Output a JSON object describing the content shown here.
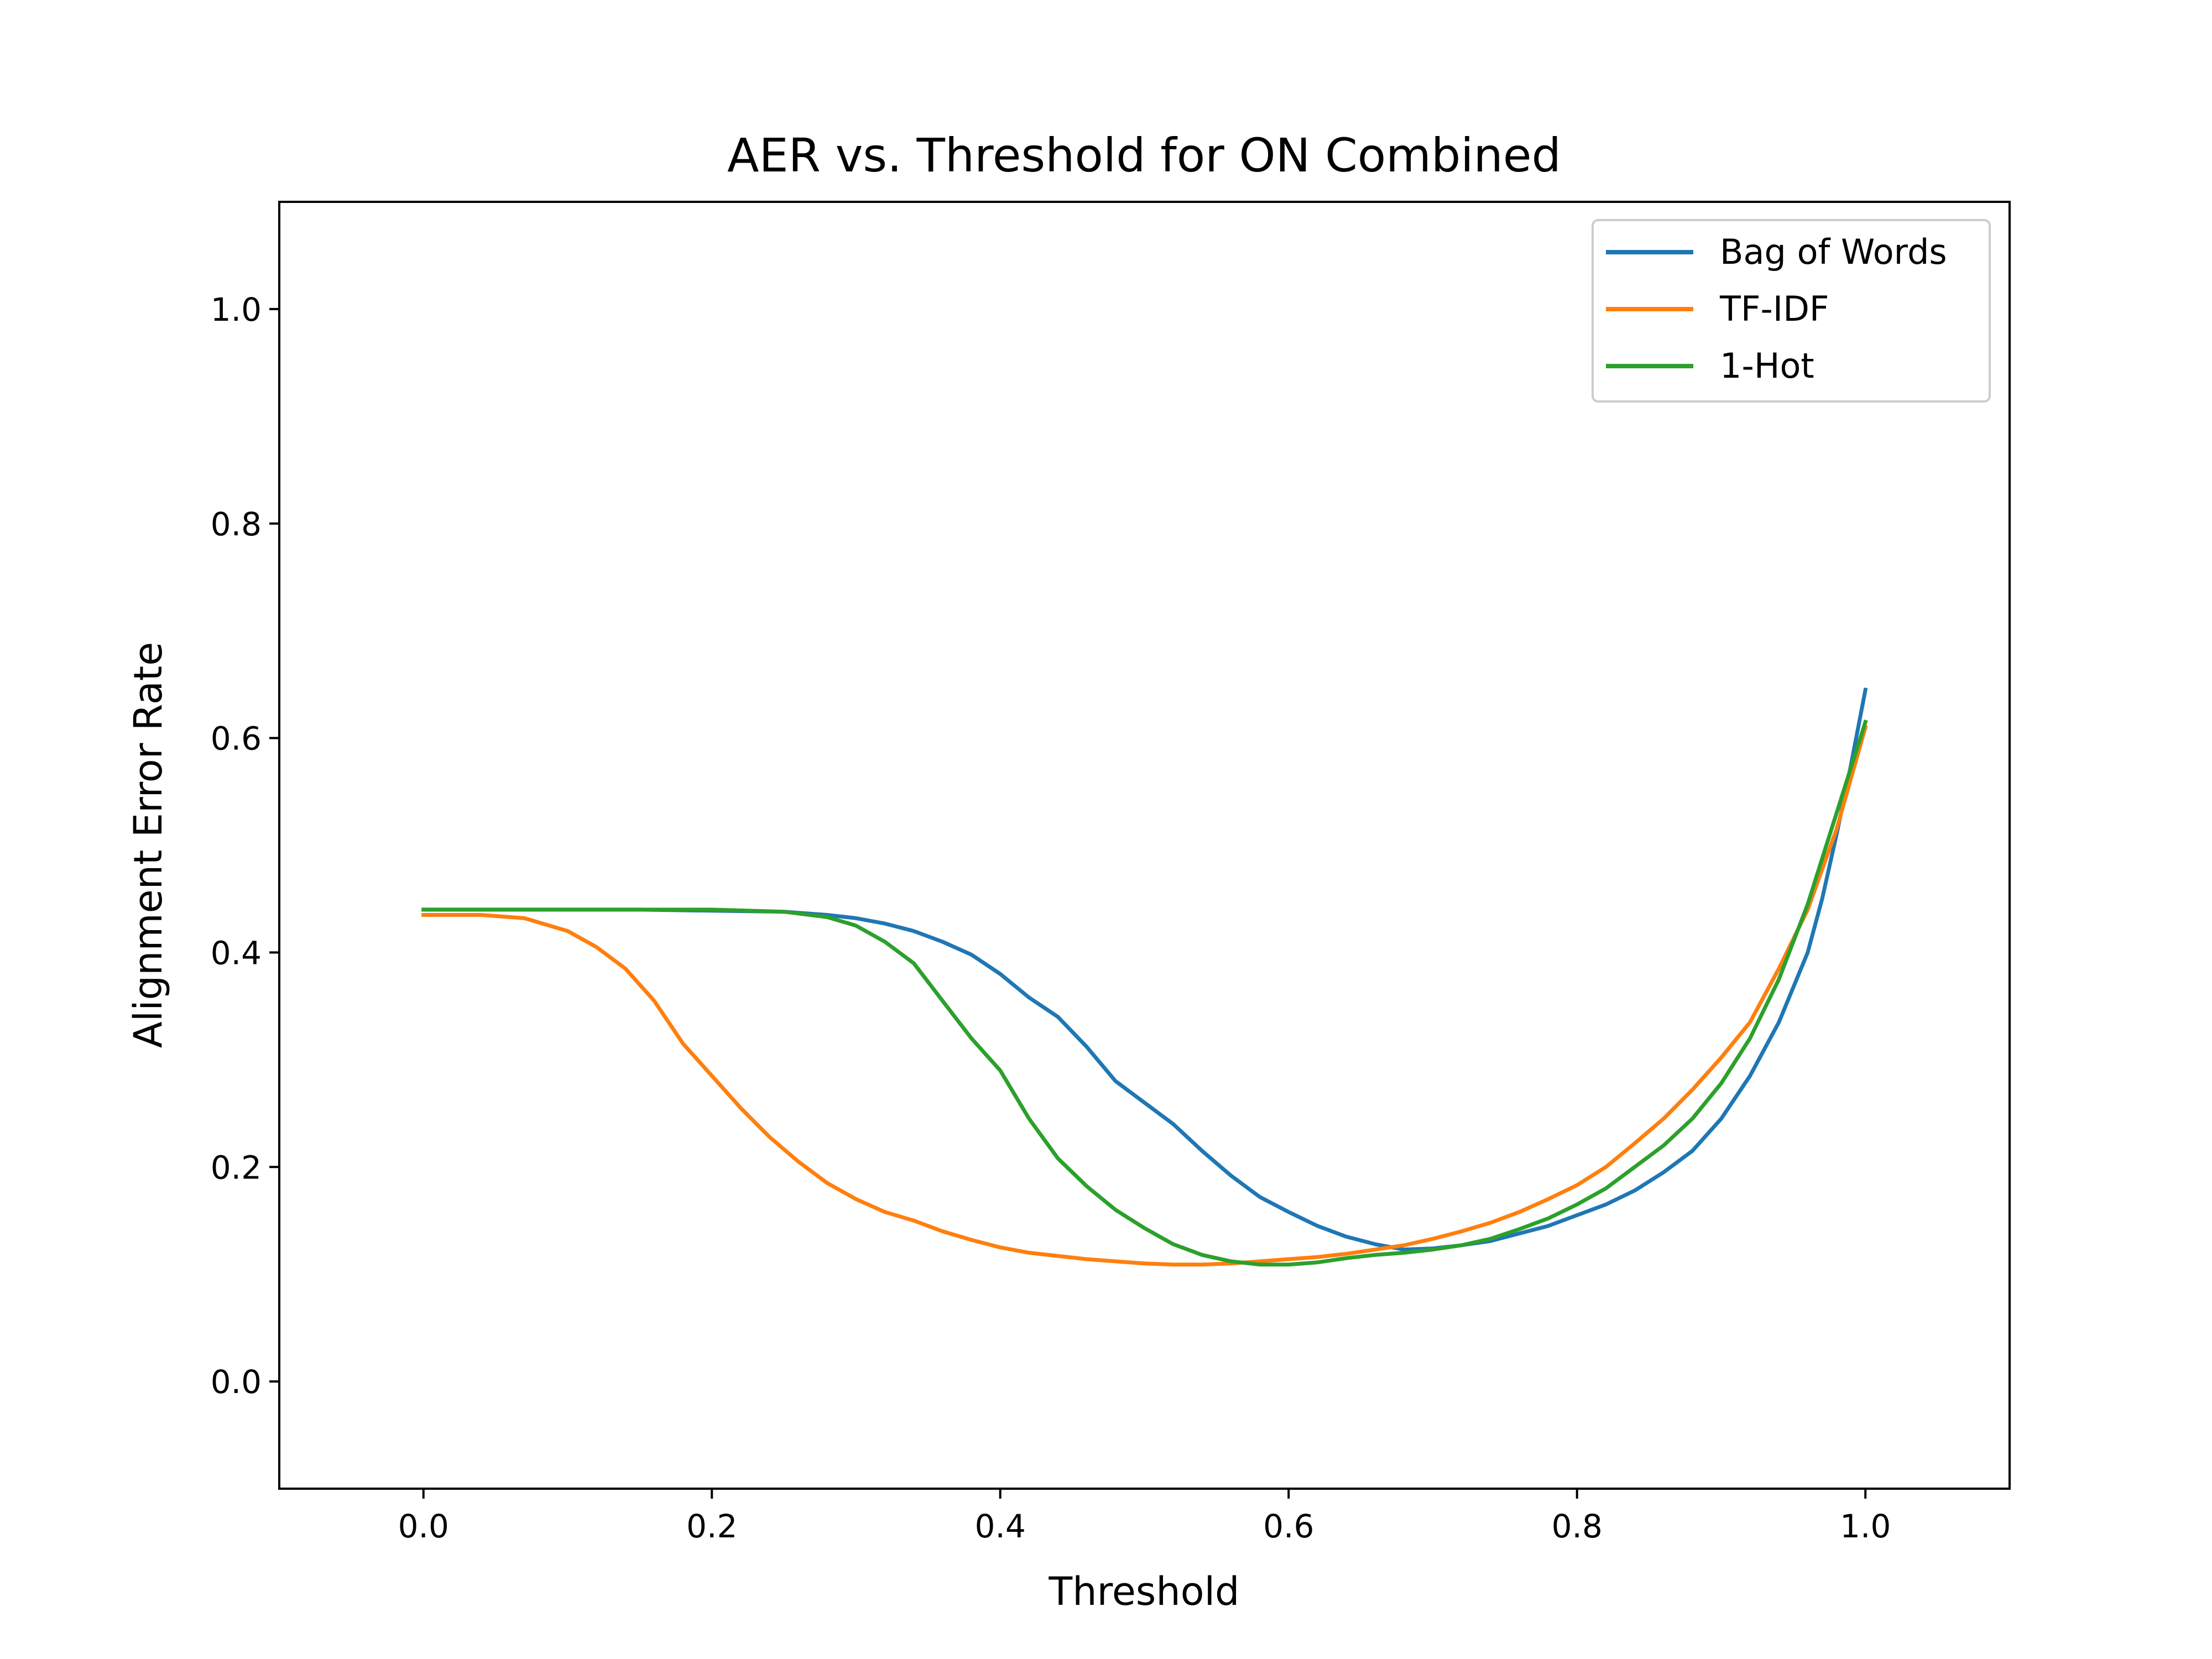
{
  "chart_data": {
    "type": "line",
    "title": "AER vs. Threshold for ON Combined",
    "xlabel": "Threshold",
    "ylabel": "Alignment Error Rate",
    "xlim": [
      -0.1,
      1.1
    ],
    "ylim": [
      -0.1,
      1.1
    ],
    "xticks": [
      0.0,
      0.2,
      0.4,
      0.6,
      0.8,
      1.0
    ],
    "xtick_labels": [
      "0.0",
      "0.2",
      "0.4",
      "0.6",
      "0.8",
      "1.0"
    ],
    "yticks": [
      0.0,
      0.2,
      0.4,
      0.6,
      0.8,
      1.0
    ],
    "ytick_labels": [
      "0.0",
      "0.2",
      "0.4",
      "0.6",
      "0.8",
      "1.0"
    ],
    "grid": false,
    "legend_position": "top-right",
    "series": [
      {
        "name": "Bag of Words",
        "color": "#1f77b4",
        "points": [
          [
            0.0,
            0.44
          ],
          [
            0.05,
            0.44
          ],
          [
            0.1,
            0.44
          ],
          [
            0.15,
            0.44
          ],
          [
            0.2,
            0.439
          ],
          [
            0.25,
            0.438
          ],
          [
            0.28,
            0.435
          ],
          [
            0.3,
            0.432
          ],
          [
            0.32,
            0.427
          ],
          [
            0.34,
            0.42
          ],
          [
            0.36,
            0.41
          ],
          [
            0.38,
            0.398
          ],
          [
            0.4,
            0.38
          ],
          [
            0.42,
            0.358
          ],
          [
            0.44,
            0.34
          ],
          [
            0.46,
            0.312
          ],
          [
            0.48,
            0.28
          ],
          [
            0.5,
            0.26
          ],
          [
            0.52,
            0.24
          ],
          [
            0.54,
            0.215
          ],
          [
            0.56,
            0.192
          ],
          [
            0.58,
            0.172
          ],
          [
            0.6,
            0.158
          ],
          [
            0.62,
            0.145
          ],
          [
            0.64,
            0.135
          ],
          [
            0.66,
            0.128
          ],
          [
            0.68,
            0.123
          ],
          [
            0.7,
            0.124
          ],
          [
            0.72,
            0.127
          ],
          [
            0.74,
            0.131
          ],
          [
            0.76,
            0.138
          ],
          [
            0.78,
            0.145
          ],
          [
            0.8,
            0.155
          ],
          [
            0.82,
            0.165
          ],
          [
            0.84,
            0.178
          ],
          [
            0.86,
            0.195
          ],
          [
            0.88,
            0.215
          ],
          [
            0.9,
            0.245
          ],
          [
            0.92,
            0.285
          ],
          [
            0.94,
            0.335
          ],
          [
            0.96,
            0.4
          ],
          [
            0.97,
            0.45
          ],
          [
            0.98,
            0.51
          ],
          [
            0.99,
            0.575
          ],
          [
            1.0,
            0.645
          ]
        ]
      },
      {
        "name": "TF-IDF",
        "color": "#ff7f0e",
        "points": [
          [
            0.0,
            0.435
          ],
          [
            0.04,
            0.435
          ],
          [
            0.07,
            0.432
          ],
          [
            0.1,
            0.42
          ],
          [
            0.12,
            0.405
          ],
          [
            0.14,
            0.385
          ],
          [
            0.16,
            0.355
          ],
          [
            0.18,
            0.315
          ],
          [
            0.2,
            0.285
          ],
          [
            0.22,
            0.255
          ],
          [
            0.24,
            0.228
          ],
          [
            0.26,
            0.205
          ],
          [
            0.28,
            0.185
          ],
          [
            0.3,
            0.17
          ],
          [
            0.32,
            0.158
          ],
          [
            0.34,
            0.15
          ],
          [
            0.36,
            0.14
          ],
          [
            0.38,
            0.132
          ],
          [
            0.4,
            0.125
          ],
          [
            0.42,
            0.12
          ],
          [
            0.44,
            0.117
          ],
          [
            0.46,
            0.114
          ],
          [
            0.48,
            0.112
          ],
          [
            0.5,
            0.11
          ],
          [
            0.52,
            0.109
          ],
          [
            0.54,
            0.109
          ],
          [
            0.56,
            0.11
          ],
          [
            0.58,
            0.112
          ],
          [
            0.6,
            0.114
          ],
          [
            0.62,
            0.116
          ],
          [
            0.64,
            0.119
          ],
          [
            0.66,
            0.123
          ],
          [
            0.68,
            0.127
          ],
          [
            0.7,
            0.133
          ],
          [
            0.72,
            0.14
          ],
          [
            0.74,
            0.148
          ],
          [
            0.76,
            0.158
          ],
          [
            0.78,
            0.17
          ],
          [
            0.8,
            0.183
          ],
          [
            0.82,
            0.2
          ],
          [
            0.84,
            0.222
          ],
          [
            0.86,
            0.245
          ],
          [
            0.88,
            0.272
          ],
          [
            0.9,
            0.302
          ],
          [
            0.92,
            0.335
          ],
          [
            0.94,
            0.385
          ],
          [
            0.96,
            0.44
          ],
          [
            0.98,
            0.515
          ],
          [
            1.0,
            0.61
          ]
        ]
      },
      {
        "name": "1-Hot",
        "color": "#2ca02c",
        "points": [
          [
            0.0,
            0.44
          ],
          [
            0.05,
            0.44
          ],
          [
            0.1,
            0.44
          ],
          [
            0.15,
            0.44
          ],
          [
            0.2,
            0.44
          ],
          [
            0.25,
            0.438
          ],
          [
            0.28,
            0.433
          ],
          [
            0.3,
            0.425
          ],
          [
            0.32,
            0.41
          ],
          [
            0.34,
            0.39
          ],
          [
            0.36,
            0.355
          ],
          [
            0.38,
            0.32
          ],
          [
            0.4,
            0.29
          ],
          [
            0.42,
            0.245
          ],
          [
            0.44,
            0.208
          ],
          [
            0.46,
            0.182
          ],
          [
            0.48,
            0.16
          ],
          [
            0.5,
            0.143
          ],
          [
            0.52,
            0.128
          ],
          [
            0.54,
            0.118
          ],
          [
            0.56,
            0.112
          ],
          [
            0.58,
            0.109
          ],
          [
            0.6,
            0.109
          ],
          [
            0.62,
            0.111
          ],
          [
            0.64,
            0.115
          ],
          [
            0.66,
            0.118
          ],
          [
            0.68,
            0.12
          ],
          [
            0.7,
            0.123
          ],
          [
            0.72,
            0.127
          ],
          [
            0.74,
            0.133
          ],
          [
            0.76,
            0.142
          ],
          [
            0.78,
            0.152
          ],
          [
            0.8,
            0.165
          ],
          [
            0.82,
            0.18
          ],
          [
            0.84,
            0.2
          ],
          [
            0.86,
            0.22
          ],
          [
            0.88,
            0.245
          ],
          [
            0.9,
            0.278
          ],
          [
            0.92,
            0.32
          ],
          [
            0.94,
            0.375
          ],
          [
            0.96,
            0.445
          ],
          [
            0.98,
            0.53
          ],
          [
            1.0,
            0.615
          ]
        ]
      }
    ]
  }
}
